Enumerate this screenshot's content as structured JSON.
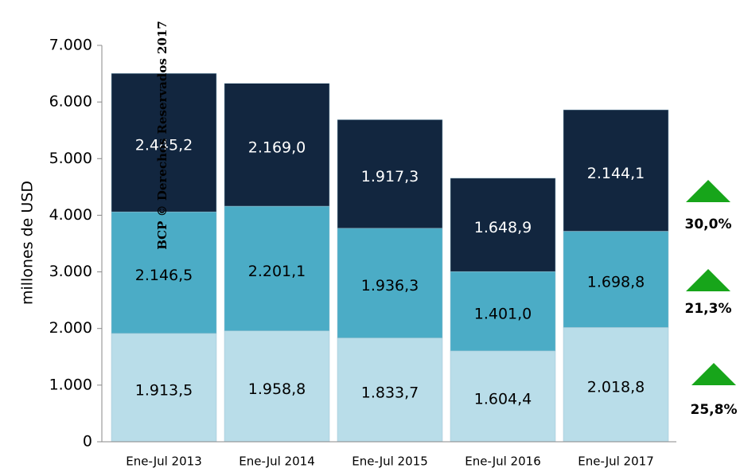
{
  "chart_data": {
    "type": "stacked_bar",
    "y_label": "millones de USD",
    "watermark": "BCP © Derechos Reservados 2017",
    "categories": [
      "Ene-Jul 2013",
      "Ene-Jul 2014",
      "Ene-Jul 2015",
      "Ene-Jul 2016",
      "Ene-Jul 2017"
    ],
    "series": [
      {
        "color": "#b9dde9",
        "values": [
          1913.5,
          1958.8,
          1833.7,
          1604.4,
          2018.8
        ],
        "value_labels": [
          "1.913,5",
          "1.958,8",
          "1.833,7",
          "1.604,4",
          "2.018,8"
        ]
      },
      {
        "color": "#4bacc6",
        "values": [
          2146.5,
          2201.1,
          1936.3,
          1401.0,
          1698.8
        ],
        "value_labels": [
          "2.146,5",
          "2.201,1",
          "1.936,3",
          "1.401,0",
          "1.698,8"
        ]
      },
      {
        "color": "#12263f",
        "values": [
          2445.2,
          2169.0,
          1917.3,
          1648.9,
          2144.1
        ],
        "value_labels": [
          "2.445,2",
          "2.169,0",
          "1.917,3",
          "1.648,9",
          "2.144,1"
        ]
      }
    ],
    "annotations": [
      "30,0%",
      "21,3%",
      "25,8%"
    ],
    "annotation_color": "#17a51a",
    "ylim": [
      0,
      7000
    ],
    "yticks": [
      0,
      {
        "value": 1000,
        "label": "1.000"
      },
      {
        "value": 2000,
        "label": "2.000"
      },
      {
        "value": 3000,
        "label": "3.000"
      },
      {
        "value": 4000,
        "label": "4.000"
      },
      {
        "value": 5000,
        "label": "5.000"
      },
      {
        "value": 6000,
        "label": "6.000"
      },
      {
        "value": 7000,
        "label": "7.000"
      }
    ]
  }
}
